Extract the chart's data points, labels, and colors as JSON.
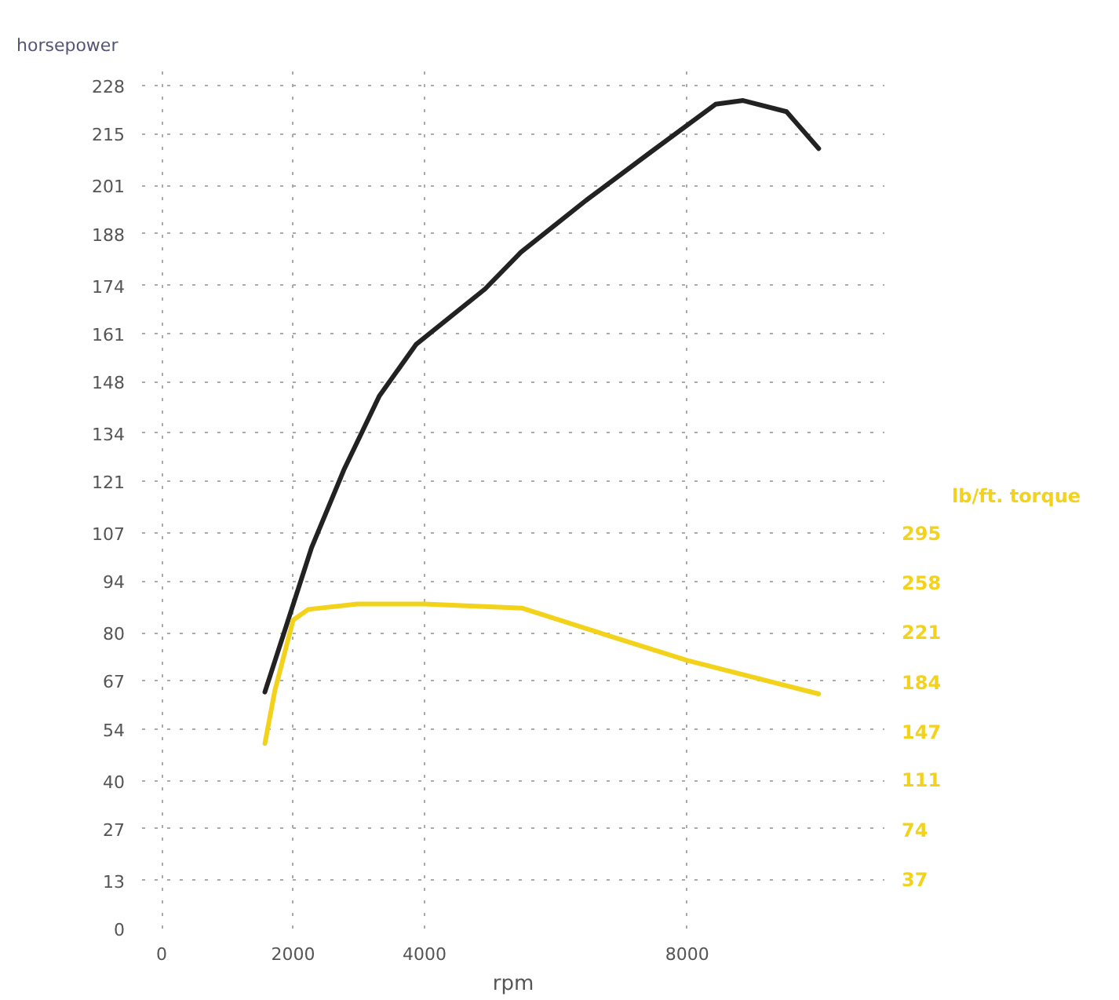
{
  "chart_data": {
    "type": "line",
    "ylabel": "horsepower",
    "y2label": "lb/ft. torque",
    "xlabel": "rpm",
    "xlim": [
      -300,
      11000
    ],
    "xticks": [
      0,
      2000,
      4000,
      8000
    ],
    "ylim": [
      0,
      234
    ],
    "yticks": [
      0,
      13,
      27,
      40,
      54,
      67,
      80,
      94,
      107,
      121,
      134,
      148,
      161,
      174,
      188,
      201,
      215,
      228
    ],
    "y2lim": [
      0,
      645
    ],
    "y2ticks": [
      37,
      74,
      111,
      147,
      184,
      221,
      258,
      295
    ],
    "grid": true,
    "line_style": "solid",
    "marker": "none",
    "series": [
      {
        "color": "#222222",
        "x": [
          1570,
          2280,
          2770,
          3310,
          3870,
          4920,
          5470,
          6460,
          7440,
          8430,
          8850,
          9510,
          10000
        ],
        "values": [
          64,
          103,
          124,
          144,
          158,
          173,
          183,
          197,
          210,
          223,
          224,
          221,
          211
        ]
      },
      {
        "color": "#f2d21b",
        "axis": "y2",
        "x": [
          1570,
          1720,
          2000,
          2230,
          2980,
          4000,
          5480,
          7020,
          8000,
          10000
        ],
        "values": [
          138,
          177,
          230,
          238,
          242,
          242,
          239,
          215,
          200,
          175
        ]
      }
    ]
  }
}
